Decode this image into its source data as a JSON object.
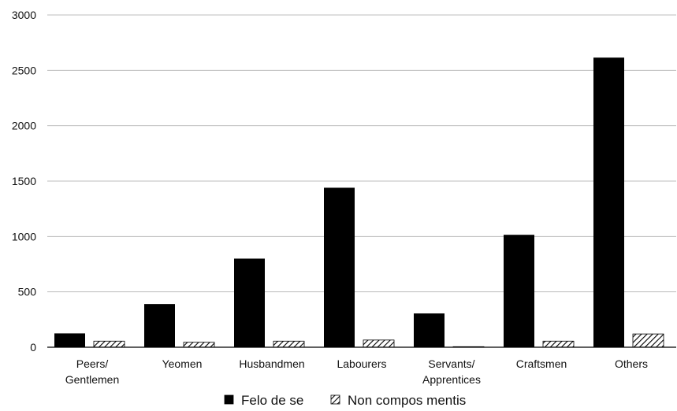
{
  "chart_data": {
    "type": "bar",
    "categories": [
      [
        "Peers/",
        "Gentlemen"
      ],
      [
        "Yeomen"
      ],
      [
        "Husbandmen"
      ],
      [
        "Labourers"
      ],
      [
        "Servants/",
        "Apprentices"
      ],
      [
        "Craftsmen"
      ],
      [
        "Others"
      ]
    ],
    "series": [
      {
        "name": "Felo de se",
        "values": [
          125,
          390,
          800,
          1440,
          305,
          1015,
          2615
        ],
        "color": "#000000",
        "pattern": "solid"
      },
      {
        "name": "Non compos mentis",
        "values": [
          55,
          45,
          55,
          65,
          5,
          55,
          120
        ],
        "color": "#000000",
        "pattern": "hatched"
      }
    ],
    "yticks": [
      "0",
      "500",
      "1000",
      "1500",
      "2000",
      "2500",
      "3000"
    ],
    "ylim": [
      0,
      3000
    ],
    "grid": true,
    "legend_position": "bottom"
  }
}
